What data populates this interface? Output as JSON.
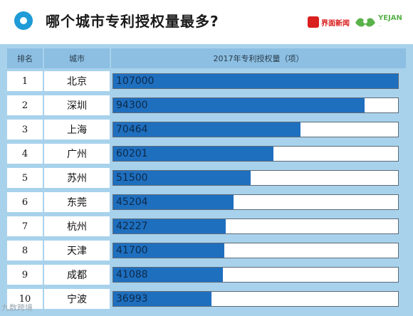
{
  "header": {
    "title": "哪个城市专利授权量最多?",
    "logo_a_text": "界面新闻",
    "logo_b_text": "YEJAN",
    "logo_b_sub": "..."
  },
  "table": {
    "col_rank": "排名",
    "col_city": "城市",
    "col_value": "2017年专利授权量（项）"
  },
  "chart_data": {
    "type": "bar",
    "title": "哪个城市专利授权量最多?",
    "ylabel": "2017年专利授权量（项）",
    "xlabel": "城市",
    "ranks": [
      "1",
      "2",
      "3",
      "4",
      "5",
      "6",
      "7",
      "8",
      "9",
      "10"
    ],
    "categories": [
      "北京",
      "深圳",
      "上海",
      "广州",
      "苏州",
      "东莞",
      "杭州",
      "天津",
      "成都",
      "宁波"
    ],
    "values": [
      107000,
      94300,
      70464,
      60201,
      51500,
      45204,
      42227,
      41700,
      41088,
      36993
    ],
    "ylim": [
      0,
      107000
    ],
    "bar_color": "#1f6fbf"
  },
  "watermark": "九数跨境"
}
